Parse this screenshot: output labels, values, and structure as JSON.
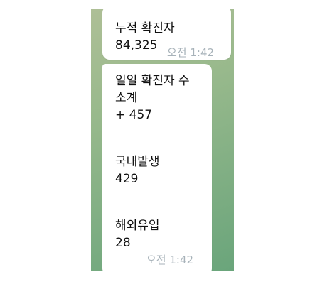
{
  "messages": [
    {
      "lines": [
        "누적 확진자",
        "84,325"
      ],
      "time": "오전 1:42"
    },
    {
      "lines": [
        "일일 확진자 수",
        "소계",
        "+ 457",
        "국내발생",
        "429",
        "해외유입",
        "28"
      ],
      "time": "오전 1:42"
    }
  ]
}
